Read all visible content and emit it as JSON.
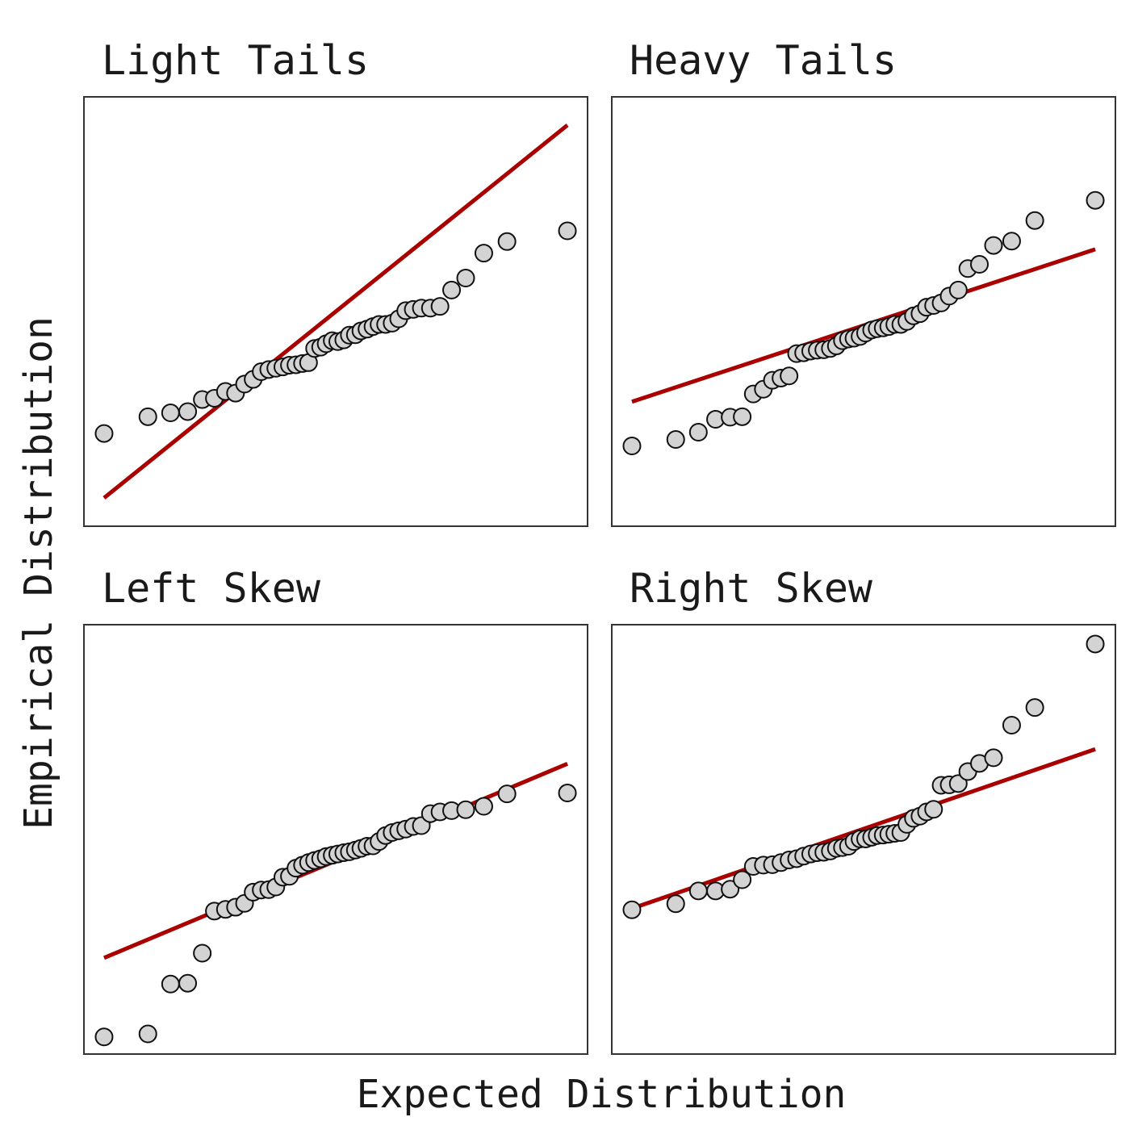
{
  "figure": {
    "xlabel": "Expected Distribution",
    "ylabel": "Empirical Distribution"
  },
  "style": {
    "point_fill": "#d3d3d3",
    "point_edge": "#111111",
    "line_color": "#aa0000",
    "frame_color": "#333333"
  },
  "chart_data": [
    {
      "type": "scatter",
      "title": "Light Tails",
      "grid": false,
      "ticks_shown": false,
      "xlim": [
        0,
        1
      ],
      "ylim": [
        0,
        1
      ],
      "reference_line": {
        "x": [
          0.04,
          0.96
        ],
        "y": [
          0.066,
          0.934
        ]
      },
      "x": [
        0.04,
        0.127,
        0.172,
        0.206,
        0.235,
        0.259,
        0.281,
        0.301,
        0.319,
        0.336,
        0.352,
        0.367,
        0.381,
        0.395,
        0.408,
        0.421,
        0.434,
        0.446,
        0.458,
        0.47,
        0.481,
        0.493,
        0.504,
        0.516,
        0.527,
        0.539,
        0.55,
        0.562,
        0.574,
        0.586,
        0.599,
        0.612,
        0.625,
        0.639,
        0.654,
        0.67,
        0.688,
        0.707,
        0.73,
        0.758,
        0.794,
        0.84,
        0.96
      ],
      "y": [
        0.216,
        0.255,
        0.264,
        0.267,
        0.295,
        0.298,
        0.314,
        0.31,
        0.331,
        0.342,
        0.36,
        0.365,
        0.368,
        0.371,
        0.375,
        0.376,
        0.379,
        0.381,
        0.414,
        0.417,
        0.425,
        0.432,
        0.43,
        0.434,
        0.445,
        0.446,
        0.455,
        0.459,
        0.465,
        0.47,
        0.47,
        0.473,
        0.483,
        0.502,
        0.505,
        0.508,
        0.508,
        0.512,
        0.55,
        0.578,
        0.636,
        0.663,
        0.688
      ]
    },
    {
      "type": "scatter",
      "title": "Heavy Tails",
      "grid": false,
      "ticks_shown": false,
      "xlim": [
        0,
        1
      ],
      "ylim": [
        0,
        1
      ],
      "reference_line": {
        "x": [
          0.04,
          0.96
        ],
        "y": [
          0.29,
          0.645
        ]
      },
      "x": [
        0.04,
        0.127,
        0.172,
        0.206,
        0.235,
        0.259,
        0.281,
        0.301,
        0.319,
        0.336,
        0.352,
        0.367,
        0.381,
        0.395,
        0.408,
        0.421,
        0.434,
        0.446,
        0.458,
        0.47,
        0.481,
        0.493,
        0.504,
        0.516,
        0.527,
        0.539,
        0.55,
        0.562,
        0.574,
        0.586,
        0.599,
        0.612,
        0.625,
        0.639,
        0.654,
        0.67,
        0.688,
        0.707,
        0.73,
        0.758,
        0.794,
        0.84,
        0.96
      ],
      "y": [
        0.187,
        0.202,
        0.219,
        0.249,
        0.254,
        0.255,
        0.308,
        0.319,
        0.34,
        0.345,
        0.35,
        0.402,
        0.404,
        0.408,
        0.41,
        0.411,
        0.414,
        0.42,
        0.432,
        0.436,
        0.438,
        0.442,
        0.45,
        0.457,
        0.46,
        0.462,
        0.465,
        0.47,
        0.47,
        0.477,
        0.49,
        0.495,
        0.51,
        0.514,
        0.52,
        0.536,
        0.55,
        0.6,
        0.61,
        0.654,
        0.664,
        0.712,
        0.759
      ]
    },
    {
      "type": "scatter",
      "title": "Left Skew",
      "grid": false,
      "ticks_shown": false,
      "xlim": [
        0,
        1
      ],
      "ylim": [
        0,
        1
      ],
      "reference_line": {
        "x": [
          0.04,
          0.96
        ],
        "y": [
          0.224,
          0.676
        ]
      },
      "x": [
        0.04,
        0.127,
        0.172,
        0.206,
        0.235,
        0.259,
        0.281,
        0.301,
        0.319,
        0.336,
        0.352,
        0.367,
        0.381,
        0.395,
        0.408,
        0.421,
        0.434,
        0.446,
        0.458,
        0.47,
        0.481,
        0.493,
        0.504,
        0.516,
        0.527,
        0.539,
        0.55,
        0.562,
        0.574,
        0.586,
        0.599,
        0.612,
        0.625,
        0.639,
        0.654,
        0.67,
        0.688,
        0.707,
        0.73,
        0.758,
        0.794,
        0.84,
        0.96
      ],
      "y": [
        0.04,
        0.047,
        0.163,
        0.165,
        0.235,
        0.333,
        0.337,
        0.342,
        0.351,
        0.377,
        0.382,
        0.383,
        0.389,
        0.412,
        0.414,
        0.433,
        0.44,
        0.446,
        0.451,
        0.455,
        0.46,
        0.463,
        0.466,
        0.469,
        0.471,
        0.475,
        0.479,
        0.484,
        0.485,
        0.495,
        0.509,
        0.516,
        0.52,
        0.524,
        0.53,
        0.532,
        0.56,
        0.564,
        0.567,
        0.569,
        0.577,
        0.606,
        0.608
      ]
    },
    {
      "type": "scatter",
      "title": "Right Skew",
      "grid": false,
      "ticks_shown": false,
      "xlim": [
        0,
        1
      ],
      "ylim": [
        0,
        1
      ],
      "reference_line": {
        "x": [
          0.04,
          0.96
        ],
        "y": [
          0.339,
          0.71
        ]
      },
      "x": [
        0.04,
        0.127,
        0.172,
        0.206,
        0.235,
        0.259,
        0.281,
        0.301,
        0.319,
        0.336,
        0.352,
        0.367,
        0.381,
        0.395,
        0.408,
        0.421,
        0.434,
        0.446,
        0.458,
        0.47,
        0.481,
        0.493,
        0.504,
        0.516,
        0.527,
        0.539,
        0.55,
        0.562,
        0.574,
        0.586,
        0.599,
        0.612,
        0.625,
        0.639,
        0.654,
        0.67,
        0.688,
        0.707,
        0.73,
        0.758,
        0.794,
        0.84,
        0.96
      ],
      "y": [
        0.336,
        0.35,
        0.38,
        0.38,
        0.384,
        0.406,
        0.437,
        0.44,
        0.441,
        0.446,
        0.452,
        0.455,
        0.461,
        0.466,
        0.469,
        0.47,
        0.473,
        0.479,
        0.481,
        0.484,
        0.495,
        0.501,
        0.501,
        0.505,
        0.509,
        0.51,
        0.512,
        0.514,
        0.516,
        0.535,
        0.549,
        0.554,
        0.564,
        0.57,
        0.626,
        0.627,
        0.63,
        0.658,
        0.677,
        0.69,
        0.766,
        0.807,
        0.955
      ]
    }
  ]
}
